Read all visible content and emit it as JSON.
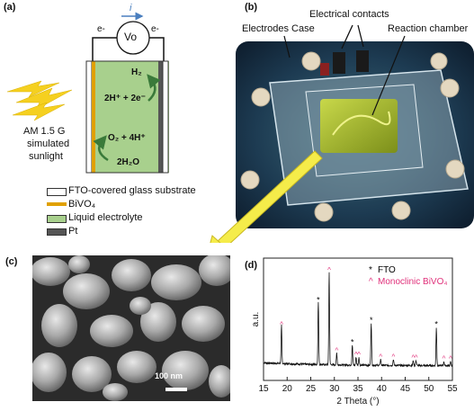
{
  "panel_a": {
    "label": "(a)",
    "meter": "Vo",
    "current": "i",
    "electron_left": "e-",
    "electron_right": "e-",
    "reaction_h2": "H₂",
    "reaction_cathode": "2H⁺ + 2e⁻",
    "reaction_o2": "O₂ + 4H⁺",
    "reaction_water": "2H₂O",
    "light_line1": "AM 1.5 G",
    "light_line2": "simulated",
    "light_line3": "sunlight",
    "legend": [
      {
        "text": "FTO-covered glass substrate",
        "color": "#ffffff"
      },
      {
        "text": "BiVO₄",
        "color": "#e0a000"
      },
      {
        "text": "Liquid electrolyte",
        "color": "#a8d08d"
      },
      {
        "text": "Pt",
        "color": "#555555"
      }
    ]
  },
  "panel_b": {
    "label": "(b)",
    "electrical_contacts": "Electrical contacts",
    "electrodes_case": "Electrodes Case",
    "reaction_chamber": "Reaction chamber"
  },
  "panel_c": {
    "label": "(c)",
    "scalebar": "100 nm"
  },
  "panel_d": {
    "label": "(d)"
  },
  "chart_data": {
    "type": "line",
    "xlabel": "2 Theta (°)",
    "ylabel": "a.u.",
    "xlim": [
      15,
      55
    ],
    "x_ticks": [
      15,
      20,
      25,
      30,
      35,
      40,
      45,
      50,
      55
    ],
    "legend": [
      {
        "marker": "*",
        "name": "FTO",
        "color": "#000000"
      },
      {
        "marker": "^",
        "name": "Monoclinic BiVO₄",
        "color": "#e0307a"
      }
    ],
    "peaks": [
      {
        "x": 18.8,
        "h": 0.38,
        "m": "^"
      },
      {
        "x": 26.6,
        "h": 0.62,
        "m": "*"
      },
      {
        "x": 28.9,
        "h": 0.92,
        "m": "^"
      },
      {
        "x": 30.5,
        "h": 0.12,
        "m": "^"
      },
      {
        "x": 33.8,
        "h": 0.2,
        "m": "*"
      },
      {
        "x": 34.6,
        "h": 0.08,
        "m": "^"
      },
      {
        "x": 35.2,
        "h": 0.08,
        "m": "^"
      },
      {
        "x": 37.8,
        "h": 0.42,
        "m": "*"
      },
      {
        "x": 39.8,
        "h": 0.06,
        "m": "^"
      },
      {
        "x": 42.5,
        "h": 0.06,
        "m": "^"
      },
      {
        "x": 46.7,
        "h": 0.05,
        "m": "^"
      },
      {
        "x": 47.3,
        "h": 0.05,
        "m": "^"
      },
      {
        "x": 51.6,
        "h": 0.38,
        "m": "*"
      },
      {
        "x": 53.2,
        "h": 0.04,
        "m": "^"
      },
      {
        "x": 54.6,
        "h": 0.04,
        "m": "^"
      }
    ],
    "grid": false
  }
}
